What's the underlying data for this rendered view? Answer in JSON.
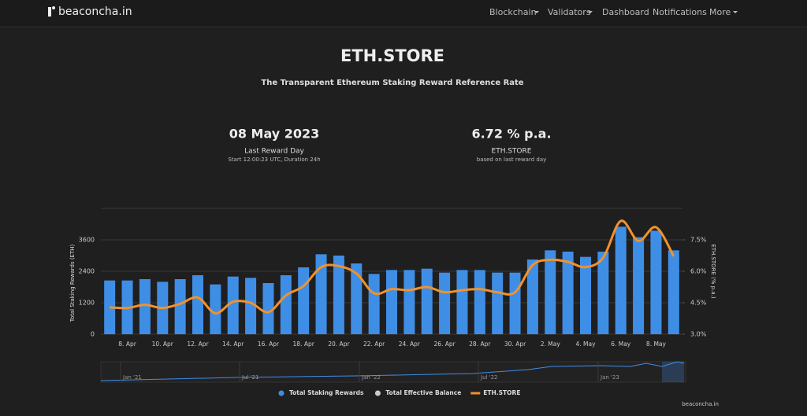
{
  "nav": {
    "brand": "beaconcha.in",
    "items": [
      "Blockchain",
      "Validators",
      "Dashboard",
      "Notifications",
      "More"
    ]
  },
  "header": {
    "title": "ETH.STORE",
    "subtitle": "The Transparent Ethereum Staking Reward Reference Rate"
  },
  "stats": [
    {
      "value": "08 May 2023",
      "label": "Last Reward Day",
      "note": "Start 12:00:23 UTC, Duration 24h"
    },
    {
      "value": "6.72 % p.a.",
      "label": "ETH.STORE",
      "note": "based on last reward day"
    }
  ],
  "chart_data": {
    "type": "combo",
    "ylabel": "Total Staking Rewards (ETH)",
    "y2label": "ETH.STORE (% p.a.)",
    "categories": [
      null,
      "8. Apr",
      null,
      "10. Apr",
      null,
      "12. Apr",
      null,
      "14. Apr",
      null,
      "16. Apr",
      null,
      "18. Apr",
      null,
      "20. Apr",
      null,
      "22. Apr",
      null,
      "24. Apr",
      null,
      "26. Apr",
      null,
      "28. Apr",
      null,
      "30. Apr",
      null,
      "2. May",
      null,
      "4. May",
      null,
      "6. May",
      null,
      "8. May",
      null
    ],
    "ylim": [
      0,
      4800
    ],
    "yticks": [
      0,
      1200,
      2400,
      3600
    ],
    "y2lim": [
      3.0,
      9.0
    ],
    "y2ticks": [
      {
        "value": 3,
        "label": "3.0%"
      },
      {
        "value": 4.5,
        "label": "4.5%"
      },
      {
        "value": 6,
        "label": "6.0%"
      },
      {
        "value": 7.5,
        "label": "7.5%"
      }
    ],
    "grid": true,
    "series": [
      {
        "name": "Total Staking Rewards",
        "type": "bar",
        "color": "#3f8ee6",
        "values": [
          2050,
          2050,
          2100,
          2000,
          2100,
          2250,
          1900,
          2200,
          2150,
          1950,
          2250,
          2550,
          3050,
          3000,
          2700,
          2300,
          2450,
          2450,
          2500,
          2350,
          2450,
          2450,
          2350,
          2350,
          2850,
          3200,
          3150,
          2950,
          3150,
          4100,
          3700,
          3950,
          3200
        ]
      },
      {
        "name": "ETH.STORE",
        "type": "line",
        "axis": "y2",
        "color": "#f0922d",
        "values": [
          4.28,
          4.25,
          4.4,
          4.25,
          4.45,
          4.75,
          4.0,
          4.55,
          4.5,
          4.05,
          4.85,
          5.3,
          6.2,
          6.25,
          5.9,
          4.95,
          5.15,
          5.1,
          5.25,
          5.0,
          5.1,
          5.15,
          5.0,
          5.0,
          6.3,
          6.55,
          6.45,
          6.2,
          6.65,
          8.4,
          7.45,
          8.1,
          6.72
        ]
      }
    ],
    "hidden_series": [
      {
        "name": "Total Effective Balance",
        "color": "#cccccc"
      }
    ]
  },
  "navigator": {
    "labels": [
      "Jan '21",
      "Jul '21",
      "Jan '22",
      "Jul '22",
      "Jan '23"
    ]
  },
  "footer": "beaconcha.in"
}
